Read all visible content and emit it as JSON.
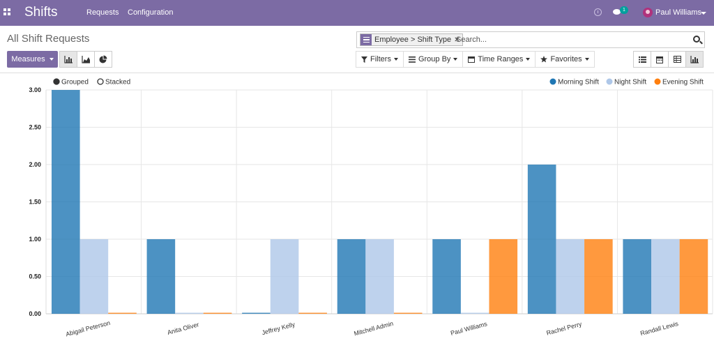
{
  "navbar": {
    "brand": "Shifts",
    "menu": [
      "Requests",
      "Configuration"
    ],
    "chat_count": "1",
    "user_name": "Paul Williams"
  },
  "page": {
    "title": "All Shift Requests"
  },
  "search": {
    "facet_label": "Employee > Shift Type",
    "placeholder": "Search..."
  },
  "toolbar": {
    "measures_label": "Measures",
    "filters_label": "Filters",
    "group_by_label": "Group By",
    "time_ranges_label": "Time Ranges",
    "favorites_label": "Favorites"
  },
  "colors": {
    "brand": "#7c6ba4",
    "morning": "#1f77b4",
    "night": "#aec7e8",
    "evening": "#ff7f0e"
  },
  "chart_data": {
    "type": "bar",
    "mode_options": [
      "Grouped",
      "Stacked"
    ],
    "mode_selected": "Grouped",
    "categories": [
      "Abigail Peterson",
      "Anita Oliver",
      "Jeffrey Kelly",
      "Mitchell Admin",
      "Paul Williams",
      "Rachel Perry",
      "Randall Lewis"
    ],
    "series": [
      {
        "name": "Morning Shift",
        "color": "#1f77b4",
        "values": [
          3,
          1,
          0,
          1,
          1,
          2,
          1
        ]
      },
      {
        "name": "Night Shift",
        "color": "#aec7e8",
        "values": [
          1,
          0,
          1,
          1,
          0,
          1,
          1
        ]
      },
      {
        "name": "Evening Shift",
        "color": "#ff7f0e",
        "values": [
          0,
          0,
          0,
          0,
          1,
          1,
          1
        ]
      }
    ],
    "yticks": [
      "0.00",
      "0.50",
      "1.00",
      "1.50",
      "2.00",
      "2.50",
      "3.00"
    ],
    "ylim": [
      0,
      3
    ],
    "grid": true,
    "legend_position": "top-right"
  }
}
